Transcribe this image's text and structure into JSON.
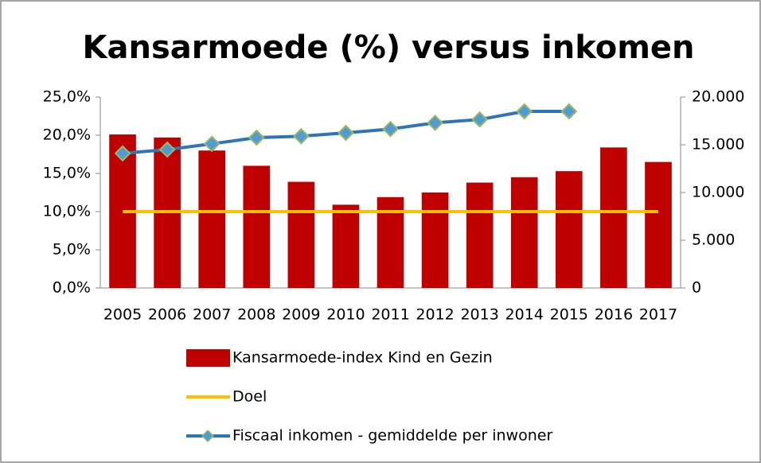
{
  "chart_data": {
    "type": "combo",
    "title": "Kansarmoede (%) versus inkomen",
    "categories": [
      "2005",
      "2006",
      "2007",
      "2008",
      "2009",
      "2010",
      "2011",
      "2012",
      "2013",
      "2014",
      "2015",
      "2016",
      "2017"
    ],
    "series": [
      {
        "name": "Kansarmoede-index Kind en Gezin",
        "type": "bar",
        "color": "#c00000",
        "values": [
          20.1,
          19.7,
          18.0,
          16.0,
          13.9,
          10.9,
          11.9,
          12.5,
          13.8,
          14.5,
          15.3,
          18.4,
          16.5
        ]
      },
      {
        "name": "Doel",
        "type": "line",
        "color": "#ffc000",
        "values": [
          10,
          10,
          10,
          10,
          10,
          10,
          10,
          10,
          10,
          10,
          10,
          10,
          10
        ]
      },
      {
        "name": "Fiscaal inkomen - gemiddelde per inwoner",
        "type": "line",
        "axis": "y2",
        "color": "#2e75b6",
        "marker": "diamond",
        "marker_color": "#4f9ad8",
        "marker_edge_color": "#9bbb59",
        "values": [
          14100,
          14500,
          15100,
          15750,
          15900,
          16250,
          16650,
          17300,
          17650,
          18500,
          18500,
          null,
          null
        ]
      }
    ],
    "ylim": [
      0,
      25
    ],
    "yticks": [
      {
        "value": 0,
        "label": "0,0%"
      },
      {
        "value": 5,
        "label": "5,0%"
      },
      {
        "value": 10,
        "label": "10,0%"
      },
      {
        "value": 15,
        "label": "15,0%"
      },
      {
        "value": 20,
        "label": "20,0%"
      },
      {
        "value": 25,
        "label": "25,0%"
      }
    ],
    "y2lim": [
      0,
      20000
    ],
    "y2ticks": [
      0,
      {
        "value": 5000,
        "label": "5.000"
      },
      {
        "value": 10000,
        "label": "10.000"
      },
      {
        "value": 15000,
        "label": "15.000"
      },
      {
        "value": 20000,
        "label": "20.000"
      }
    ],
    "grid": false,
    "legend": "bottom"
  }
}
